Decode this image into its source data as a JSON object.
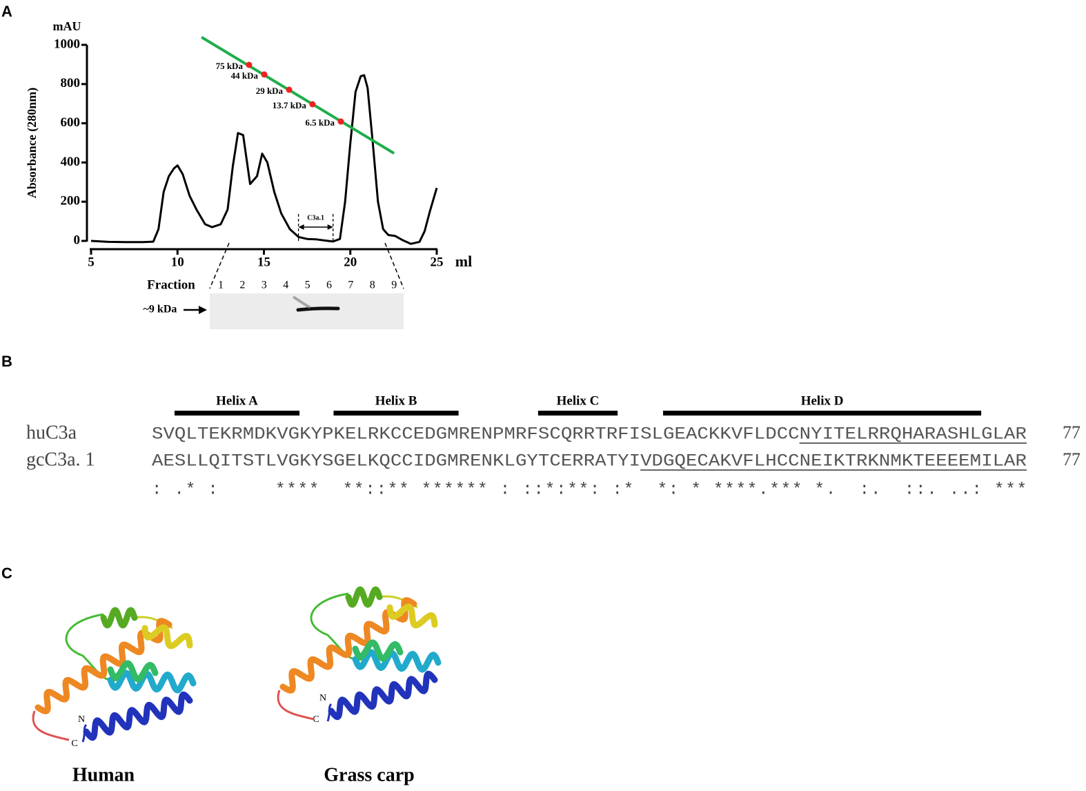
{
  "panels": [
    "A",
    "B",
    "C"
  ],
  "chart_data": {
    "type": "line",
    "y_label": "Absorbance (280nm)",
    "y_unit": "mAU",
    "x_unit": "ml",
    "xlim": [
      5,
      25
    ],
    "ylim": [
      0,
      1000
    ],
    "xticks": [
      5,
      10,
      15,
      20,
      25
    ],
    "yticks": [
      0,
      200,
      400,
      600,
      800,
      1000
    ],
    "series": [
      {
        "color": "#000000",
        "x": [
          5,
          6,
          7,
          8,
          8.6,
          8.9,
          9.2,
          9.5,
          9.8,
          10.0,
          10.3,
          10.7,
          11.1,
          11.6,
          12.0,
          12.5,
          12.9,
          13.2,
          13.5,
          13.8,
          14.2,
          14.6,
          14.9,
          15.2,
          15.6,
          16.0,
          16.5,
          17.0,
          17.5,
          18.0,
          18.5,
          19.0,
          19.4,
          19.7,
          20.0,
          20.3,
          20.6,
          20.8,
          21.0,
          21.3,
          21.6,
          21.9,
          22.2,
          22.6,
          23.0,
          23.5,
          24.0,
          24.3,
          24.6,
          25.0
        ],
        "values": [
          0,
          -5,
          -6,
          -6,
          -4,
          60,
          250,
          330,
          370,
          385,
          340,
          230,
          160,
          85,
          70,
          85,
          160,
          380,
          550,
          540,
          290,
          330,
          445,
          400,
          250,
          140,
          60,
          20,
          10,
          8,
          2,
          -3,
          10,
          200,
          500,
          760,
          840,
          845,
          780,
          500,
          200,
          60,
          30,
          25,
          5,
          -15,
          -5,
          50,
          150,
          270
        ]
      },
      {
        "color": "#1fae4b",
        "x": [
          11.39,
          22.53
        ],
        "values": [
          1039,
          447
        ]
      },
      {
        "color": "#ee2222",
        "type": "scatter",
        "x": [
          14.14,
          15.02,
          16.46,
          17.81,
          19.45
        ],
        "values": [
          898,
          849,
          771,
          697,
          609
        ],
        "labels": [
          "75 kDa",
          "44 kDa",
          "29 kDa",
          "13.7 kDa",
          "6.5 kDa"
        ]
      }
    ],
    "bracket": {
      "label": "C3a.1",
      "x": [
        17,
        19
      ]
    },
    "fraction": {
      "label": "Fraction",
      "lanes": [
        1,
        2,
        3,
        4,
        5,
        6,
        7,
        8,
        9
      ],
      "marker": "~9 kDa"
    }
  },
  "alignment": {
    "helices": [
      {
        "label": "Helix A",
        "start": 2,
        "end": 13
      },
      {
        "label": "Helix B",
        "start": 16,
        "end": 27
      },
      {
        "label": "Helix C",
        "start": 34,
        "end": 41
      },
      {
        "label": "Helix D",
        "start": 45,
        "end": 73
      }
    ],
    "rows": [
      {
        "name": "huC3a",
        "sequence": "SVQLTEKRMDKVGKYPKELRKCCEDGMRENPMRFSCQRRTRFISLGEACKKVFLDCCNYITELRRQHARASHLGLAR",
        "length": 77,
        "underline_from": 57
      },
      {
        "name": "gcC3a. 1",
        "sequence": "AESLLQITSTLVGKYSGELKQCCIDGMRENKLGYTCERRATYIVDGQECAKVFLHCCNEIKTRKNMKTEEEEMILAR",
        "length": 77,
        "underline_from": 43
      }
    ],
    "conservation": ": .* :     ****  **::** ****** : ::*:**: :*  *: * ****.*** *.  :.  ::. ..: ***"
  },
  "structures": [
    {
      "label": "Human",
      "n": "N",
      "c": "C"
    },
    {
      "label": "Grass carp",
      "n": "N",
      "c": "C"
    }
  ]
}
